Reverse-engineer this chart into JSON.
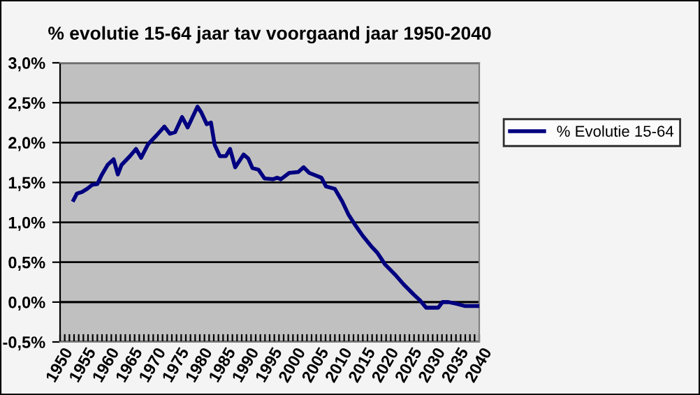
{
  "chart_data": {
    "type": "line",
    "title": "% evolutie 15-64 jaar tav voorgaand jaar 1950-2040",
    "series": [
      {
        "name": "% Evolutie 15-64",
        "color": "#000080",
        "x": [
          1952.9,
          1953.6,
          1954.7,
          1955.8,
          1956.9,
          1958.0,
          1958.9,
          1960.2,
          1961.5,
          1962.4,
          1963.2,
          1965.0,
          1966.3,
          1967.4,
          1968.9,
          1970.7,
          1972.4,
          1973.6,
          1974.7,
          1976.2,
          1977.4,
          1979.5,
          1980.3,
          1981.5,
          1982.4,
          1983.2,
          1984.3,
          1985.6,
          1986.5,
          1987.6,
          1989.4,
          1990.4,
          1991.3,
          1992.6,
          1993.9,
          1995.7,
          1996.6,
          1997.4,
          1999.2,
          2001.1,
          2002.3,
          2003.5,
          2006.1,
          2007.1,
          2009.0,
          2010.6,
          2011.9,
          2013.2,
          2015.0,
          2016.8,
          2018.1,
          2019.8,
          2022.0,
          2023.8,
          2026.0,
          2027.3,
          2028.6,
          2031.2,
          2032.1,
          2033.4,
          2035.0,
          2037.0,
          2040.0
        ],
        "values": [
          1.28,
          1.36,
          1.38,
          1.42,
          1.47,
          1.48,
          1.59,
          1.72,
          1.79,
          1.6,
          1.72,
          1.83,
          1.92,
          1.81,
          1.98,
          2.09,
          2.2,
          2.11,
          2.13,
          2.32,
          2.19,
          2.45,
          2.38,
          2.23,
          2.25,
          1.97,
          1.83,
          1.83,
          1.92,
          1.69,
          1.85,
          1.8,
          1.68,
          1.66,
          1.55,
          1.54,
          1.56,
          1.54,
          1.62,
          1.63,
          1.69,
          1.62,
          1.56,
          1.45,
          1.42,
          1.26,
          1.1,
          0.98,
          0.83,
          0.7,
          0.62,
          0.47,
          0.34,
          0.22,
          0.09,
          0.02,
          -0.07,
          -0.07,
          0.0,
          0.0,
          -0.02,
          -0.05,
          -0.05
        ]
      }
    ],
    "xlim": [
      1950,
      2040
    ],
    "xticks": [
      {
        "value": 1950,
        "label": "1950"
      },
      {
        "value": 1951,
        "label": null
      },
      {
        "value": 1952,
        "label": null
      },
      {
        "value": 1953,
        "label": null
      },
      {
        "value": 1954,
        "label": null
      },
      {
        "value": 1955,
        "label": "1955"
      },
      {
        "value": 1956,
        "label": null
      },
      {
        "value": 1957,
        "label": null
      },
      {
        "value": 1958,
        "label": null
      },
      {
        "value": 1959,
        "label": null
      },
      {
        "value": 1960,
        "label": "1960"
      },
      {
        "value": 1961,
        "label": null
      },
      {
        "value": 1962,
        "label": null
      },
      {
        "value": 1963,
        "label": null
      },
      {
        "value": 1964,
        "label": null
      },
      {
        "value": 1965,
        "label": "1965"
      },
      {
        "value": 1966,
        "label": null
      },
      {
        "value": 1967,
        "label": null
      },
      {
        "value": 1968,
        "label": null
      },
      {
        "value": 1969,
        "label": null
      },
      {
        "value": 1970,
        "label": "1970"
      },
      {
        "value": 1971,
        "label": null
      },
      {
        "value": 1972,
        "label": null
      },
      {
        "value": 1973,
        "label": null
      },
      {
        "value": 1974,
        "label": null
      },
      {
        "value": 1975,
        "label": "1975"
      },
      {
        "value": 1976,
        "label": null
      },
      {
        "value": 1977,
        "label": null
      },
      {
        "value": 1978,
        "label": null
      },
      {
        "value": 1979,
        "label": null
      },
      {
        "value": 1980,
        "label": "1980"
      },
      {
        "value": 1981,
        "label": null
      },
      {
        "value": 1982,
        "label": null
      },
      {
        "value": 1983,
        "label": null
      },
      {
        "value": 1984,
        "label": null
      },
      {
        "value": 1985,
        "label": "1985"
      },
      {
        "value": 1986,
        "label": null
      },
      {
        "value": 1987,
        "label": null
      },
      {
        "value": 1988,
        "label": null
      },
      {
        "value": 1989,
        "label": null
      },
      {
        "value": 1990,
        "label": "1990"
      },
      {
        "value": 1991,
        "label": null
      },
      {
        "value": 1992,
        "label": null
      },
      {
        "value": 1993,
        "label": null
      },
      {
        "value": 1994,
        "label": null
      },
      {
        "value": 1995,
        "label": "1995"
      },
      {
        "value": 1996,
        "label": null
      },
      {
        "value": 1997,
        "label": null
      },
      {
        "value": 1998,
        "label": null
      },
      {
        "value": 1999,
        "label": null
      },
      {
        "value": 2000,
        "label": "2000"
      },
      {
        "value": 2001,
        "label": null
      },
      {
        "value": 2002,
        "label": null
      },
      {
        "value": 2003,
        "label": null
      },
      {
        "value": 2004,
        "label": null
      },
      {
        "value": 2005,
        "label": "2005"
      },
      {
        "value": 2006,
        "label": null
      },
      {
        "value": 2007,
        "label": null
      },
      {
        "value": 2008,
        "label": null
      },
      {
        "value": 2009,
        "label": null
      },
      {
        "value": 2010,
        "label": "2010"
      },
      {
        "value": 2011,
        "label": null
      },
      {
        "value": 2012,
        "label": null
      },
      {
        "value": 2013,
        "label": null
      },
      {
        "value": 2014,
        "label": null
      },
      {
        "value": 2015,
        "label": "2015"
      },
      {
        "value": 2016,
        "label": null
      },
      {
        "value": 2017,
        "label": null
      },
      {
        "value": 2018,
        "label": null
      },
      {
        "value": 2019,
        "label": null
      },
      {
        "value": 2020,
        "label": "2020"
      },
      {
        "value": 2021,
        "label": null
      },
      {
        "value": 2022,
        "label": null
      },
      {
        "value": 2023,
        "label": null
      },
      {
        "value": 2024,
        "label": null
      },
      {
        "value": 2025,
        "label": "2025"
      },
      {
        "value": 2026,
        "label": null
      },
      {
        "value": 2027,
        "label": null
      },
      {
        "value": 2028,
        "label": null
      },
      {
        "value": 2029,
        "label": null
      },
      {
        "value": 2030,
        "label": "2030"
      },
      {
        "value": 2031,
        "label": null
      },
      {
        "value": 2032,
        "label": null
      },
      {
        "value": 2033,
        "label": null
      },
      {
        "value": 2034,
        "label": null
      },
      {
        "value": 2035,
        "label": "2035"
      },
      {
        "value": 2036,
        "label": null
      },
      {
        "value": 2037,
        "label": null
      },
      {
        "value": 2038,
        "label": null
      },
      {
        "value": 2039,
        "label": null
      },
      {
        "value": 2040,
        "label": "2040"
      }
    ],
    "ylim": [
      -0.5,
      3.0
    ],
    "yticks": [
      {
        "value": -0.5,
        "label": "-0,5%"
      },
      {
        "value": 0,
        "label": "0,0%"
      },
      {
        "value": 0.5,
        "label": "0,5%"
      },
      {
        "value": 1.0,
        "label": "1,0%"
      },
      {
        "value": 1.5,
        "label": "1,5%"
      },
      {
        "value": 2.0,
        "label": "2,0%"
      },
      {
        "value": 2.5,
        "label": "2,5%"
      },
      {
        "value": 3.0,
        "label": "3,0%"
      }
    ],
    "grid": "y",
    "legend": "right",
    "marker": "none",
    "line_style": "solid"
  }
}
